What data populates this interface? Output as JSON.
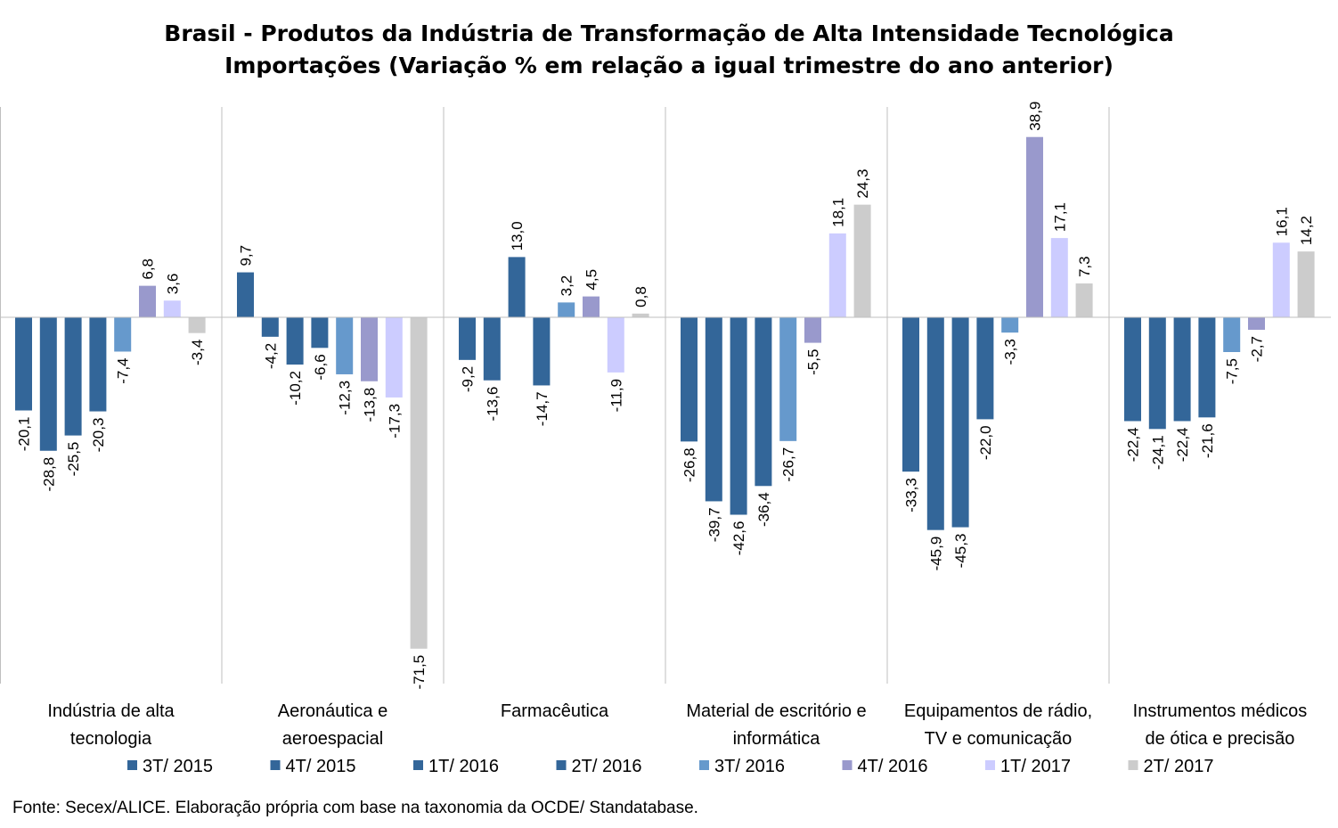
{
  "chart_data": {
    "type": "bar",
    "title": [
      "Brasil - Produtos da Indústria de Transformação de Alta Intensidade Tecnológica",
      "Importações (Variação % em relação a igual trimestre do ano anterior)"
    ],
    "categories": [
      [
        "Indústria de alta",
        "tecnologia"
      ],
      [
        "Aeronáutica e",
        "aeroespacial"
      ],
      [
        "Farmacêutica"
      ],
      [
        "Material de escritório e",
        "informática"
      ],
      [
        "Equipamentos de rádio,",
        "TV e comunicação"
      ],
      [
        "Instrumentos médicos",
        "de ótica e precisão"
      ]
    ],
    "series": [
      {
        "name": "3T/ 2015",
        "color": "#336699",
        "values": [
          -20.1,
          9.7,
          -9.2,
          -26.8,
          -33.3,
          -22.4
        ],
        "labels": [
          "-20,1",
          "9,7",
          "-9,2",
          "-26,8",
          "-33,3",
          "-22,4"
        ]
      },
      {
        "name": "4T/ 2015",
        "color": "#336699",
        "values": [
          -28.8,
          -4.2,
          -13.6,
          -39.7,
          -45.9,
          -24.1
        ],
        "labels": [
          "-28,8",
          "-4,2",
          "-13,6",
          "-39,7",
          "-45,9",
          "-24,1"
        ]
      },
      {
        "name": "1T/ 2016",
        "color": "#336699",
        "values": [
          -25.5,
          -10.2,
          13.0,
          -42.6,
          -45.3,
          -22.4
        ],
        "labels": [
          "-25,5",
          "-10,2",
          "13,0",
          "-42,6",
          "-45,3",
          "-22,4"
        ]
      },
      {
        "name": "2T/ 2016",
        "color": "#336699",
        "values": [
          -20.3,
          -6.6,
          -14.7,
          -36.4,
          -22.0,
          -21.6
        ],
        "labels": [
          "-20,3",
          "-6,6",
          "-14,7",
          "-36,4",
          "-22,0",
          "-21,6"
        ]
      },
      {
        "name": "3T/ 2016",
        "color": "#6699cc",
        "values": [
          -7.4,
          -12.3,
          3.2,
          -26.7,
          -3.3,
          -7.5
        ],
        "labels": [
          "-7,4",
          "-12,3",
          "3,2",
          "-26,7",
          "-3,3",
          "-7,5"
        ]
      },
      {
        "name": "4T/ 2016",
        "color": "#9999cc",
        "values": [
          6.8,
          -13.8,
          4.5,
          -5.5,
          38.9,
          -2.7
        ],
        "labels": [
          "6,8",
          "-13,8",
          "4,5",
          "-5,5",
          "38,9",
          "-2,7"
        ]
      },
      {
        "name": "1T/ 2017",
        "color": "#ccccff",
        "values": [
          3.6,
          -17.3,
          -11.9,
          18.1,
          17.1,
          16.1
        ],
        "labels": [
          "3,6",
          "-17,3",
          "-11,9",
          "18,1",
          "17,1",
          "16,1"
        ]
      },
      {
        "name": "2T/ 2017",
        "color": "#cccccc",
        "values": [
          -3.4,
          -71.5,
          0.8,
          24.3,
          7.3,
          14.2
        ],
        "labels": [
          "-3,4",
          "-71,5",
          "0,8",
          "24,3",
          "7,3",
          "14,2"
        ]
      }
    ],
    "ylim": [
      -77.3,
      45.4
    ],
    "grid": false,
    "legend_placement": "bottom"
  },
  "footer": {
    "source": "Fonte: Secex/ALICE. Elaboração própria com base na taxonomia da OCDE/ Standatabase."
  }
}
